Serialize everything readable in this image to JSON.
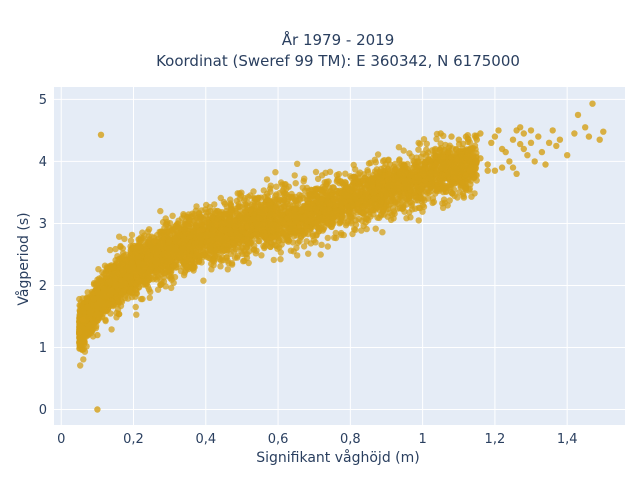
{
  "chart_data": {
    "type": "scatter",
    "title_lines": [
      "År 1979 - 2019",
      "Koordinat (Sweref 99 TM): E 360342, N 6175000"
    ],
    "xlabel": "Signifikant våghöjd (m)",
    "ylabel": "Vågperiod (s)",
    "xlim": [
      -0.02,
      1.56
    ],
    "ylim": [
      -0.25,
      5.2
    ],
    "x_ticks": [
      0,
      0.2,
      0.4,
      0.6,
      0.8,
      1.0,
      1.2,
      1.4
    ],
    "x_tick_labels": [
      "0",
      "0,2",
      "0,4",
      "0,6",
      "0,8",
      "1",
      "1,2",
      "1,4"
    ],
    "y_ticks": [
      0,
      1,
      2,
      3,
      4,
      5
    ],
    "y_tick_labels": [
      "0",
      "1",
      "2",
      "3",
      "4",
      "5"
    ],
    "grid": true,
    "background_color": "#e5ecf6",
    "marker_color": "#d4a017",
    "dense_band": {
      "x_min": 0.05,
      "x_max": 1.15,
      "center_curve": [
        [
          0.05,
          1.3
        ],
        [
          0.08,
          1.55
        ],
        [
          0.12,
          1.85
        ],
        [
          0.15,
          2.05
        ],
        [
          0.2,
          2.25
        ],
        [
          0.3,
          2.55
        ],
        [
          0.4,
          2.75
        ],
        [
          0.5,
          2.95
        ],
        [
          0.6,
          3.05
        ],
        [
          0.7,
          3.2
        ],
        [
          0.8,
          3.35
        ],
        [
          0.9,
          3.55
        ],
        [
          1.0,
          3.75
        ],
        [
          1.1,
          3.9
        ],
        [
          1.15,
          3.95
        ]
      ],
      "spread": 0.22
    },
    "points": [
      [
        0.11,
        4.43
      ],
      [
        0.1,
        0.0
      ],
      [
        0.1,
        1.2
      ],
      [
        0.05,
        1.25
      ],
      [
        0.06,
        1.45
      ],
      [
        1.01,
        4.1
      ],
      [
        1.05,
        4.45
      ],
      [
        1.08,
        4.4
      ],
      [
        1.1,
        4.35
      ],
      [
        1.12,
        4.4
      ],
      [
        1.14,
        4.1
      ],
      [
        1.15,
        4.35
      ],
      [
        1.16,
        4.05
      ],
      [
        1.18,
        3.95
      ],
      [
        1.19,
        4.3
      ],
      [
        1.2,
        4.4
      ],
      [
        1.21,
        4.5
      ],
      [
        1.22,
        4.2
      ],
      [
        1.23,
        4.15
      ],
      [
        1.24,
        4.0
      ],
      [
        1.25,
        3.9
      ],
      [
        1.25,
        4.35
      ],
      [
        1.26,
        4.5
      ],
      [
        1.27,
        4.55
      ],
      [
        1.28,
        4.45
      ],
      [
        1.29,
        4.1
      ],
      [
        1.3,
        4.3
      ],
      [
        1.3,
        4.5
      ],
      [
        1.31,
        4.0
      ],
      [
        1.32,
        4.4
      ],
      [
        1.33,
        4.15
      ],
      [
        1.34,
        3.95
      ],
      [
        1.35,
        4.3
      ],
      [
        1.36,
        4.5
      ],
      [
        1.37,
        4.25
      ],
      [
        1.38,
        4.35
      ],
      [
        1.4,
        4.1
      ],
      [
        1.42,
        4.45
      ],
      [
        1.43,
        4.75
      ],
      [
        1.45,
        4.55
      ],
      [
        1.46,
        4.4
      ],
      [
        1.47,
        4.93
      ],
      [
        1.49,
        4.35
      ],
      [
        1.5,
        4.48
      ],
      [
        1.2,
        3.85
      ],
      [
        1.22,
        3.9
      ],
      [
        1.26,
        3.8
      ],
      [
        1.18,
        3.85
      ],
      [
        1.28,
        4.2
      ],
      [
        1.16,
        4.45
      ],
      [
        1.13,
        3.85
      ],
      [
        1.27,
        4.28
      ]
    ]
  }
}
